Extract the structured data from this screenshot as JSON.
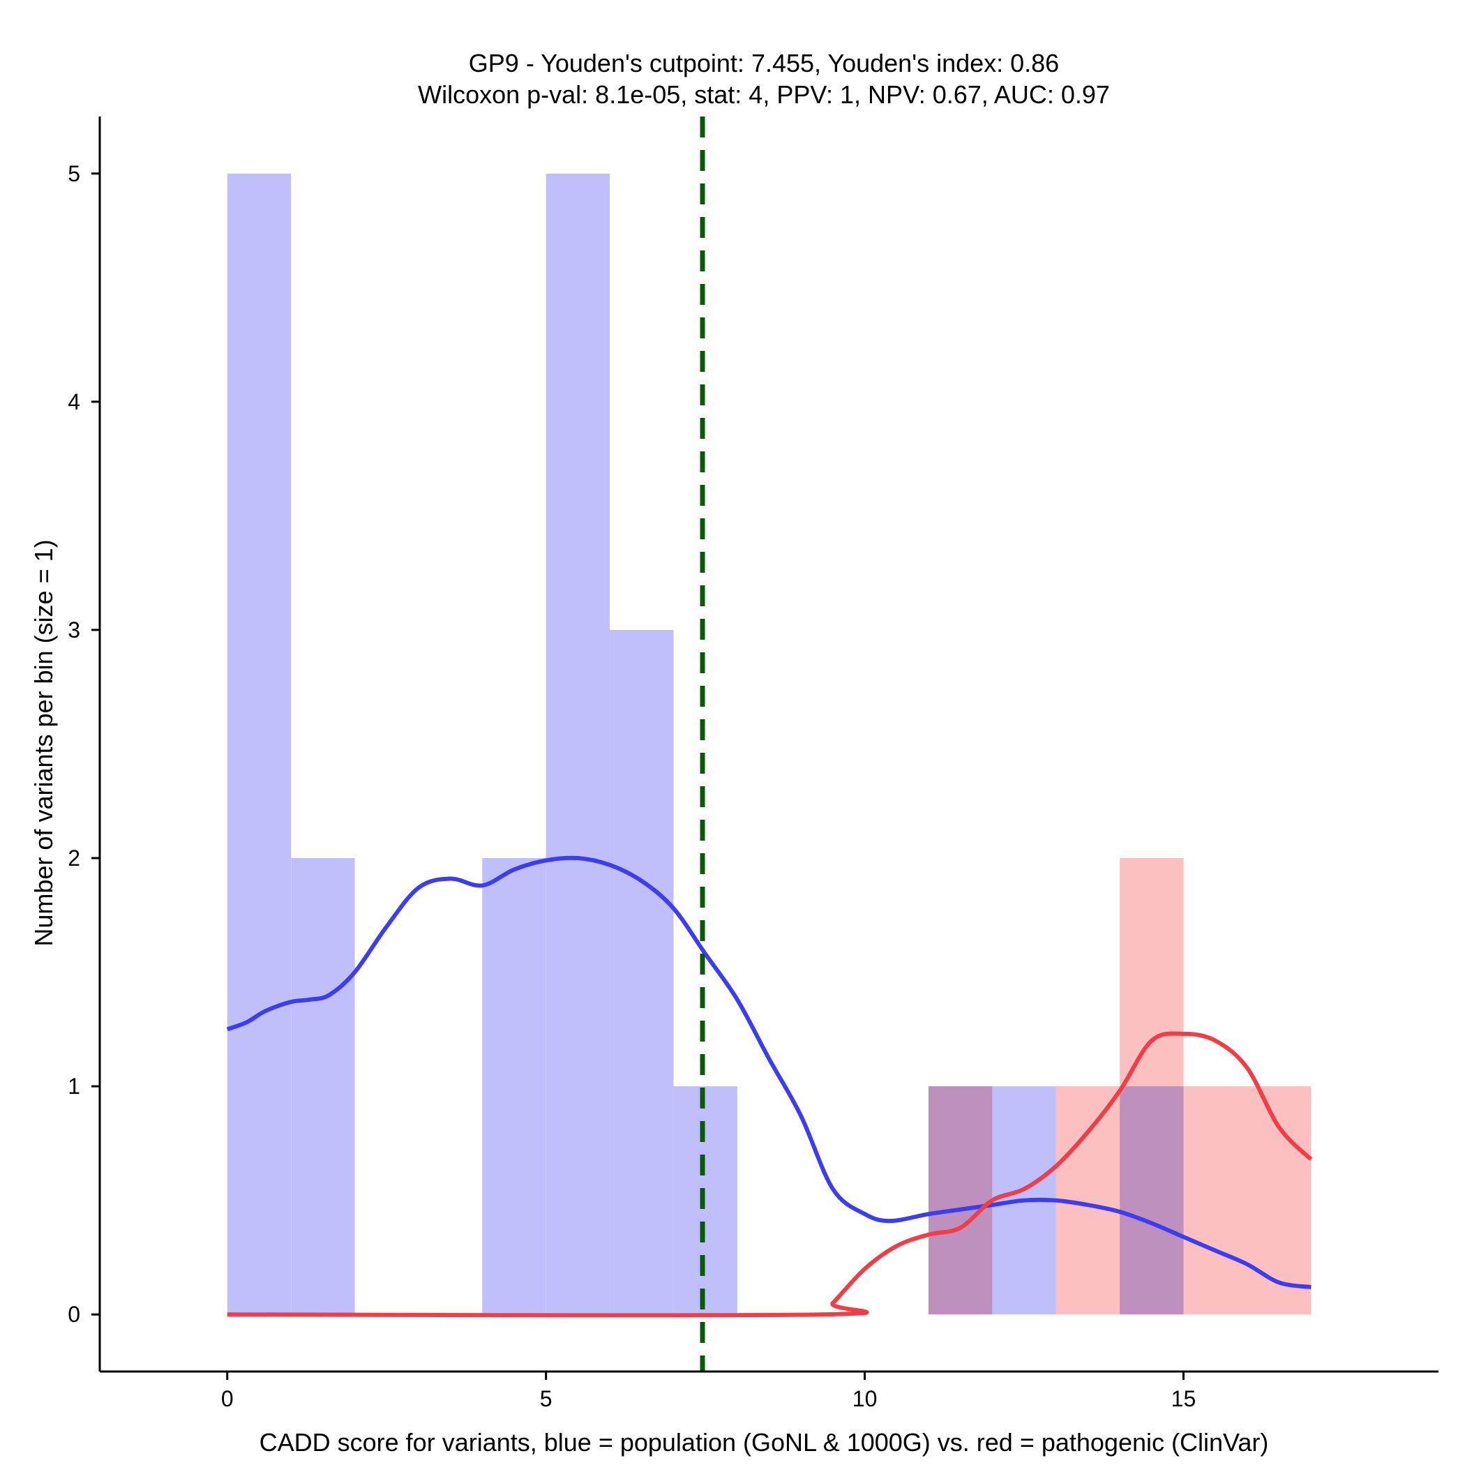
{
  "chart_data": {
    "type": "bar",
    "title_line1": "GP9 - Youden's cutpoint: 7.455, Youden's index: 0.86",
    "title_line2": "Wilcoxon p-val: 8.1e-05, stat: 4, PPV: 1, NPV: 0.67, AUC: 0.97",
    "xlabel": "CADD score for variants, blue = population (GoNL & 1000G) vs. red = pathogenic (ClinVar)",
    "ylabel": "Number of variants per bin (size = 1)",
    "xlim": [
      -2,
      19
    ],
    "ylim": [
      -0.25,
      5.25
    ],
    "x_ticks": [
      0,
      5,
      10,
      15
    ],
    "y_ticks": [
      0,
      1,
      2,
      3,
      4,
      5
    ],
    "bin_width": 1,
    "colors": {
      "population_fill": "#bfbffb",
      "pathogenic_fill": "#fcc0c0",
      "population_line": "#3c3cf0",
      "pathogenic_line": "#f23c46",
      "cutpoint_line": "#0a5a0a"
    },
    "series": [
      {
        "name": "population",
        "bins": [
          {
            "x": 0,
            "count": 5
          },
          {
            "x": 1,
            "count": 2
          },
          {
            "x": 4,
            "count": 2
          },
          {
            "x": 5,
            "count": 5
          },
          {
            "x": 6,
            "count": 3
          },
          {
            "x": 7,
            "count": 1
          },
          {
            "x": 11,
            "count": 1
          },
          {
            "x": 12,
            "count": 1
          },
          {
            "x": 14,
            "count": 1
          }
        ],
        "density": [
          [
            0,
            1.25
          ],
          [
            0.3,
            1.28
          ],
          [
            0.6,
            1.33
          ],
          [
            1.0,
            1.37
          ],
          [
            1.3,
            1.38
          ],
          [
            1.6,
            1.4
          ],
          [
            2.0,
            1.5
          ],
          [
            2.5,
            1.7
          ],
          [
            3.0,
            1.87
          ],
          [
            3.5,
            1.91
          ],
          [
            4.0,
            1.88
          ],
          [
            4.5,
            1.95
          ],
          [
            5.0,
            1.99
          ],
          [
            5.5,
            2.0
          ],
          [
            6.0,
            1.97
          ],
          [
            6.5,
            1.9
          ],
          [
            7.0,
            1.78
          ],
          [
            7.5,
            1.58
          ],
          [
            8.0,
            1.38
          ],
          [
            8.5,
            1.12
          ],
          [
            9.0,
            0.87
          ],
          [
            9.5,
            0.55
          ],
          [
            10.0,
            0.44
          ],
          [
            10.4,
            0.41
          ],
          [
            11.0,
            0.44
          ],
          [
            11.5,
            0.46
          ],
          [
            12.0,
            0.48
          ],
          [
            12.5,
            0.5
          ],
          [
            13.0,
            0.5
          ],
          [
            13.5,
            0.48
          ],
          [
            14.0,
            0.45
          ],
          [
            14.5,
            0.4
          ],
          [
            15.0,
            0.34
          ],
          [
            15.5,
            0.28
          ],
          [
            16.0,
            0.22
          ],
          [
            16.5,
            0.14
          ],
          [
            17.0,
            0.12
          ]
        ]
      },
      {
        "name": "pathogenic",
        "bins": [
          {
            "x": 11,
            "count": 1
          },
          {
            "x": 13,
            "count": 1
          },
          {
            "x": 14,
            "count": 2
          },
          {
            "x": 15,
            "count": 1
          },
          {
            "x": 16,
            "count": 1
          }
        ],
        "density": [
          [
            0,
            0
          ],
          [
            9.3,
            0
          ],
          [
            9.5,
            0.05
          ],
          [
            10.0,
            0.2
          ],
          [
            10.5,
            0.3
          ],
          [
            11.0,
            0.35
          ],
          [
            11.5,
            0.38
          ],
          [
            12.0,
            0.5
          ],
          [
            12.5,
            0.55
          ],
          [
            13.0,
            0.65
          ],
          [
            13.5,
            0.8
          ],
          [
            14.0,
            0.98
          ],
          [
            14.5,
            1.2
          ],
          [
            15.0,
            1.23
          ],
          [
            15.5,
            1.2
          ],
          [
            16.0,
            1.08
          ],
          [
            16.5,
            0.82
          ],
          [
            17.0,
            0.68
          ]
        ]
      }
    ],
    "cutpoint": 7.455
  }
}
